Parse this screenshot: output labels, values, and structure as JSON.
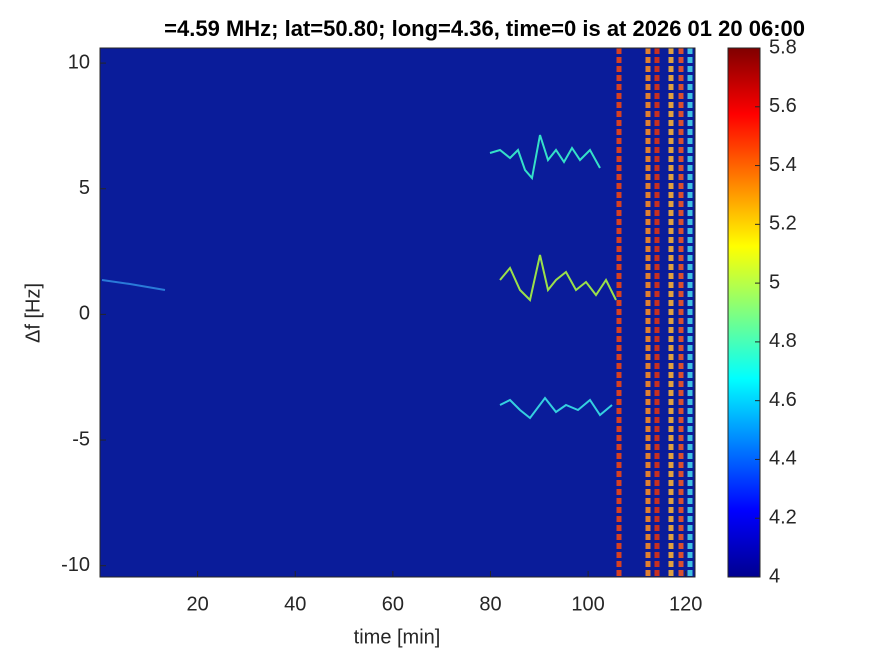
{
  "chart_data": {
    "type": "heatmap",
    "title": "=4.59 MHz;  lat=50.80; long=4.36, time=0 is at 2026 01 20 06:00",
    "x_label": "time [min]",
    "y_label": "Δf [Hz]",
    "xlim": [
      0,
      121.9
    ],
    "xticks": [
      20,
      40,
      60,
      80,
      100,
      120
    ],
    "ylim": [
      -10.45,
      10.6
    ],
    "yticks": [
      -10,
      -5,
      0,
      5,
      10
    ],
    "colormap": "jet",
    "clim": [
      4,
      5.8
    ],
    "colorbar_ticks": [
      4,
      4.2,
      4.4,
      4.6,
      4.8,
      5,
      5.2,
      5.4,
      5.6,
      5.8
    ]
  }
}
